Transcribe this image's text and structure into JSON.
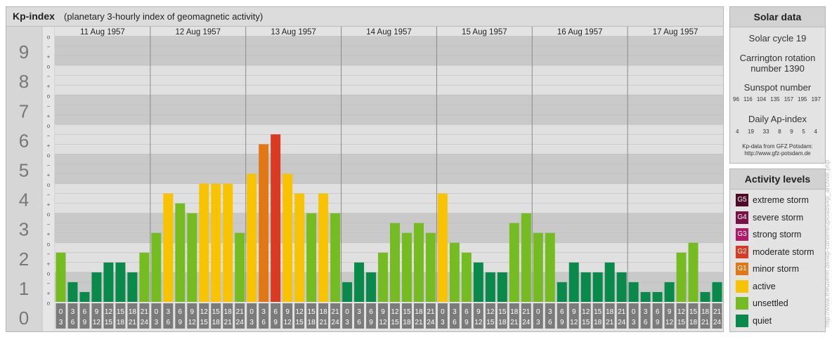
{
  "header": {
    "title": "Kp-index",
    "subtitle": "(planetary 3-hourly index of geomagnetic activity)"
  },
  "colors": {
    "quiet": "#0a8a4a",
    "unsettled": "#74bc22",
    "active": "#f8c300",
    "G1": "#e07818",
    "G2": "#d83a22",
    "G3": "#b01a68",
    "G4": "#7a1048",
    "G5": "#4e0828"
  },
  "chart_data": {
    "type": "bar",
    "title": "Kp-index",
    "ylim": [
      0,
      9
    ],
    "y_tick_labels": [
      "0",
      "1",
      "2",
      "3",
      "4",
      "5",
      "6",
      "7",
      "8",
      "9"
    ],
    "minor_tick_labels": [
      "o",
      "+",
      "−"
    ],
    "days": [
      "11 Aug 1957",
      "12 Aug 1957",
      "13 Aug 1957",
      "14 Aug 1957",
      "15 Aug 1957",
      "16 Aug 1957",
      "17 Aug 1957"
    ],
    "interval_labels_top": [
      "0",
      "3",
      "6",
      "9",
      "12",
      "15",
      "18",
      "21"
    ],
    "interval_labels_bottom": [
      "3",
      "6",
      "9",
      "12",
      "15",
      "18",
      "21",
      "24"
    ],
    "series": [
      {
        "values": [
          1.667,
          0.667,
          0.333,
          1.0,
          1.333,
          1.333,
          1.0,
          1.667,
          2.333,
          3.667,
          3.333,
          3.0,
          4.0,
          4.0,
          4.0,
          2.333,
          4.333,
          5.333,
          5.667,
          4.333,
          3.667,
          3.0,
          3.667,
          3.0,
          0.667,
          1.333,
          1.0,
          1.667,
          2.667,
          2.333,
          2.667,
          2.333,
          3.667,
          2.0,
          1.667,
          1.333,
          1.0,
          1.0,
          2.667,
          3.0,
          2.333,
          2.333,
          0.667,
          1.333,
          1.0,
          1.0,
          1.333,
          1.0,
          0.667,
          0.333,
          0.333,
          0.667,
          1.667,
          2.0,
          0.333,
          0.667
        ]
      }
    ]
  },
  "solar": {
    "title": "Solar data",
    "cycle": "Solar cycle 19",
    "rotation_line1": "Carrington rotation",
    "rotation_line2": "number 1390",
    "sunspot_label": "Sunspot number",
    "sunspot_values": [
      "96",
      "116",
      "104",
      "135",
      "157",
      "195",
      "197"
    ],
    "ap_label": "Daily Ap-index",
    "ap_values": [
      "4",
      "19",
      "33",
      "8",
      "9",
      "5",
      "4"
    ],
    "source_line1": "Kp-data from GFZ Potsdam:",
    "source_line2": "http://www.gfz-potsdam.de"
  },
  "activity": {
    "title": "Activity levels",
    "levels": [
      {
        "badge": "G5",
        "label": "extreme storm",
        "color": "#4e0828"
      },
      {
        "badge": "G4",
        "label": "severe storm",
        "color": "#7a1048"
      },
      {
        "badge": "G3",
        "label": "strong storm",
        "color": "#b01a68"
      },
      {
        "badge": "G2",
        "label": "moderate storm",
        "color": "#d83a22"
      },
      {
        "badge": "G1",
        "label": "minor storm",
        "color": "#e07818"
      },
      {
        "badge": "",
        "label": "active",
        "color": "#f8c300"
      },
      {
        "badge": "",
        "label": "unsettled",
        "color": "#74bc22"
      },
      {
        "badge": "",
        "label": "quiet",
        "color": "#0a8a4a"
      }
    ]
  },
  "credit": "http://www.theuserer.de/wp-content/uploads/kp_archive.php"
}
